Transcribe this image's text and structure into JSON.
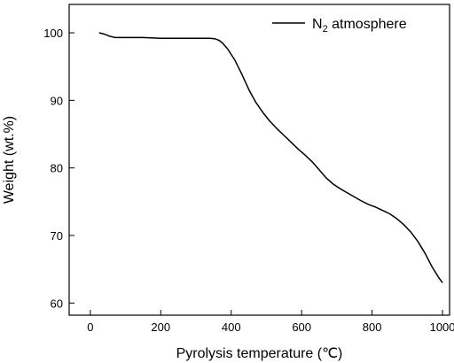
{
  "chart_data": {
    "type": "line",
    "title": "",
    "xlabel": "Pyrolysis temperature (℃)",
    "ylabel": "Weight (wt.%)",
    "xlim": [
      -60,
      1020
    ],
    "ylim": [
      58.2,
      104.2
    ],
    "x_ticks": [
      0,
      200,
      400,
      600,
      800,
      1000
    ],
    "x_tick_labels": [
      "0",
      "200",
      "400",
      "600",
      "800",
      "1000"
    ],
    "y_ticks": [
      60,
      70,
      80,
      90,
      100
    ],
    "y_tick_labels": [
      "60",
      "70",
      "80",
      "90",
      "100"
    ],
    "grid": false,
    "legend_position": "top-right",
    "series": [
      {
        "name_main": "N",
        "name_sub": "2",
        "name_rest": " atmosphere",
        "color": "#000000",
        "x": [
          25,
          40,
          55,
          70,
          100,
          150,
          200,
          250,
          300,
          340,
          355,
          365,
          375,
          390,
          410,
          430,
          450,
          470,
          490,
          510,
          530,
          550,
          570,
          590,
          610,
          630,
          650,
          670,
          690,
          710,
          730,
          750,
          770,
          790,
          810,
          830,
          850,
          870,
          890,
          910,
          930,
          950,
          970,
          990,
          1000
        ],
        "y": [
          100.0,
          99.8,
          99.5,
          99.3,
          99.3,
          99.3,
          99.2,
          99.2,
          99.2,
          99.2,
          99.1,
          98.9,
          98.5,
          97.6,
          96.0,
          93.9,
          91.6,
          89.7,
          88.2,
          86.9,
          85.8,
          84.8,
          83.8,
          82.8,
          81.9,
          80.9,
          79.7,
          78.5,
          77.6,
          76.9,
          76.3,
          75.7,
          75.1,
          74.6,
          74.2,
          73.7,
          73.2,
          72.5,
          71.6,
          70.5,
          69.1,
          67.4,
          65.4,
          63.7,
          63.0
        ]
      }
    ]
  }
}
